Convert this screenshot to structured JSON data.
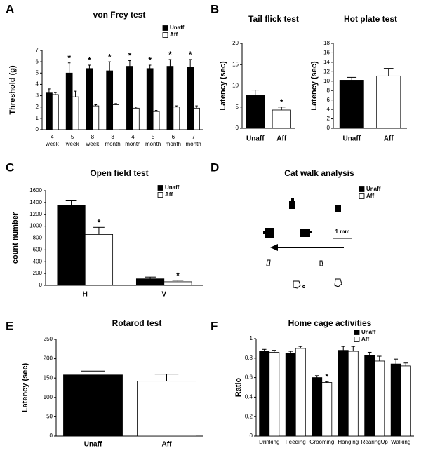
{
  "chart_data": [
    {
      "type": "bar",
      "panel": "A",
      "title": "von Frey test",
      "ylabel": "Threshold (g)",
      "categories": [
        "4 week",
        "5 week",
        "8 week",
        "3 month",
        "4 month",
        "5 month",
        "6 month",
        "7 month"
      ],
      "series": [
        {
          "name": "Unaff",
          "color": "#000000",
          "values": [
            3.3,
            5.0,
            5.4,
            5.2,
            5.6,
            5.4,
            5.6,
            5.5
          ],
          "errors": [
            0.3,
            0.9,
            0.3,
            0.8,
            0.5,
            0.3,
            0.6,
            0.7
          ],
          "significance": [
            null,
            "*",
            "*",
            "*",
            "*",
            "*",
            "*",
            "*"
          ]
        },
        {
          "name": "Aff",
          "color": "#ffffff",
          "values": [
            3.1,
            2.9,
            2.1,
            2.2,
            1.9,
            1.6,
            2.0,
            1.9
          ],
          "errors": [
            0.2,
            0.5,
            0.1,
            0.1,
            0.1,
            0.1,
            0.1,
            0.2
          ]
        }
      ],
      "ylim": [
        0,
        7
      ],
      "yticks": [
        0,
        1,
        2,
        3,
        4,
        5,
        6,
        7
      ],
      "legend": "upper right"
    },
    {
      "type": "bar",
      "panel": "B",
      "title": "Tail flick test",
      "ylabel": "Latency (sec)",
      "categories": [
        "Unaff",
        "Aff"
      ],
      "values": [
        7.7,
        4.3
      ],
      "errors": [
        1.3,
        0.7
      ],
      "colors": [
        "#000000",
        "#ffffff"
      ],
      "significance": [
        null,
        "*"
      ],
      "ylim": [
        0,
        20
      ],
      "yticks": [
        0,
        5,
        10,
        15,
        20
      ]
    },
    {
      "type": "bar",
      "title": "Hot plate test",
      "ylabel": "Latency (sec)",
      "categories": [
        "Unaff",
        "Aff"
      ],
      "values": [
        10.2,
        11.1
      ],
      "errors": [
        0.6,
        1.6
      ],
      "colors": [
        "#000000",
        "#ffffff"
      ],
      "ylim": [
        0,
        18
      ],
      "yticks": [
        0,
        2,
        4,
        6,
        8,
        10,
        12,
        14,
        16,
        18
      ]
    },
    {
      "type": "diagram",
      "panel": "D",
      "title": "Cat walk analysis",
      "legend": [
        "Unaff",
        "Aff"
      ],
      "scale_label": "1 mm"
    },
    {
      "type": "bar",
      "panel": "C",
      "title": "Open field test",
      "ylabel": "count number",
      "categories": [
        "H",
        "V"
      ],
      "series": [
        {
          "name": "Unaff",
          "color": "#000000",
          "values": [
            1350,
            110
          ],
          "errors": [
            90,
            30
          ]
        },
        {
          "name": "Aff",
          "color": "#ffffff",
          "values": [
            860,
            60
          ],
          "errors": [
            120,
            25
          ],
          "significance": [
            "*",
            "*"
          ]
        }
      ],
      "ylim": [
        0,
        1600
      ],
      "yticks": [
        0,
        200,
        400,
        600,
        800,
        1000,
        1200,
        1400,
        1600
      ],
      "legend": "upper right"
    },
    {
      "type": "bar",
      "panel": "E",
      "title": "Rotarod test",
      "ylabel": "Latency (sec)",
      "categories": [
        "Unaff",
        "Aff"
      ],
      "values": [
        158,
        142
      ],
      "errors": [
        10,
        18
      ],
      "colors": [
        "#000000",
        "#ffffff"
      ],
      "ylim": [
        0,
        250
      ],
      "yticks": [
        0,
        50,
        100,
        150,
        200,
        250
      ]
    },
    {
      "type": "bar",
      "panel": "F",
      "title": "Home cage activities",
      "ylabel": "Ratio",
      "categories": [
        "Drinking",
        "Feeding",
        "Grooming",
        "Hanging",
        "RearingUp",
        "Walking"
      ],
      "series": [
        {
          "name": "Unaff",
          "color": "#000000",
          "values": [
            0.87,
            0.85,
            0.6,
            0.88,
            0.83,
            0.74
          ],
          "errors": [
            0.02,
            0.02,
            0.02,
            0.04,
            0.03,
            0.05
          ]
        },
        {
          "name": "Aff",
          "color": "#ffffff",
          "values": [
            0.86,
            0.9,
            0.55,
            0.87,
            0.77,
            0.72
          ],
          "errors": [
            0.02,
            0.02,
            0.01,
            0.05,
            0.05,
            0.03
          ],
          "significance": [
            null,
            null,
            "*",
            null,
            null,
            null
          ]
        }
      ],
      "ylim": [
        0,
        1
      ],
      "yticks": [
        0,
        0.2,
        0.4,
        0.6,
        0.8,
        1
      ],
      "legend": "upper right"
    }
  ]
}
